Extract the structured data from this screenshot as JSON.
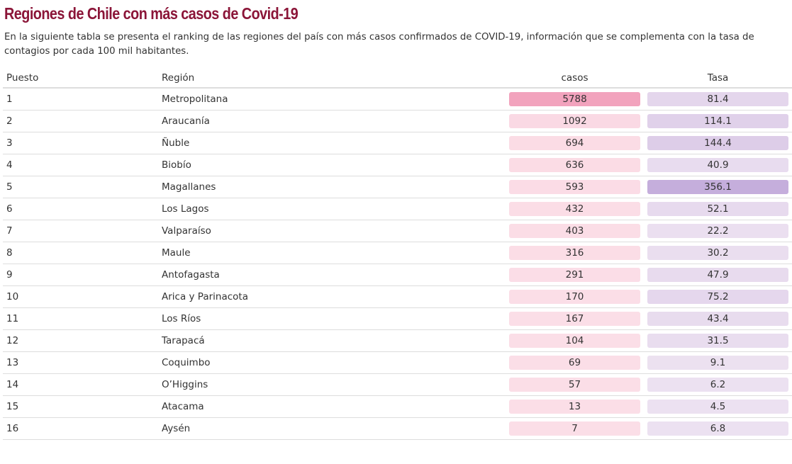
{
  "title": "Regiones de Chile con más casos de Covid-19",
  "description": "En la siguiente tabla se presenta el ranking de las regiones del país con más casos confirmados de COVID-19, información que se complementa con la tasa de contagios por cada 100 mil habitantes.",
  "headers": {
    "puesto": "Puesto",
    "region": "Región",
    "casos": "casos",
    "tasa": "Tasa"
  },
  "colors": {
    "title": "#8b1538",
    "casos_low": "#fbdee7",
    "casos_high": "#f2a3bd",
    "tasa_low": "#ede2f1",
    "tasa_high": "#c5aedc"
  },
  "rows": [
    {
      "puesto": "1",
      "region": "Metropolitana",
      "casos": "5788",
      "tasa": "81.4"
    },
    {
      "puesto": "2",
      "region": "Araucanía",
      "casos": "1092",
      "tasa": "114.1"
    },
    {
      "puesto": "3",
      "region": "Ñuble",
      "casos": "694",
      "tasa": "144.4"
    },
    {
      "puesto": "4",
      "region": "Biobío",
      "casos": "636",
      "tasa": "40.9"
    },
    {
      "puesto": "5",
      "region": "Magallanes",
      "casos": "593",
      "tasa": "356.1"
    },
    {
      "puesto": "6",
      "region": "Los Lagos",
      "casos": "432",
      "tasa": "52.1"
    },
    {
      "puesto": "7",
      "region": "Valparaíso",
      "casos": "403",
      "tasa": "22.2"
    },
    {
      "puesto": "8",
      "region": "Maule",
      "casos": "316",
      "tasa": "30.2"
    },
    {
      "puesto": "9",
      "region": "Antofagasta",
      "casos": "291",
      "tasa": "47.9"
    },
    {
      "puesto": "10",
      "region": "Arica y Parinacota",
      "casos": "170",
      "tasa": "75.2"
    },
    {
      "puesto": "11",
      "region": "Los Ríos",
      "casos": "167",
      "tasa": "43.4"
    },
    {
      "puesto": "12",
      "region": "Tarapacá",
      "casos": "104",
      "tasa": "31.5"
    },
    {
      "puesto": "13",
      "region": "Coquimbo",
      "casos": "69",
      "tasa": "9.1"
    },
    {
      "puesto": "14",
      "region": "O’Higgins",
      "casos": "57",
      "tasa": "6.2"
    },
    {
      "puesto": "15",
      "region": "Atacama",
      "casos": "13",
      "tasa": "4.5"
    },
    {
      "puesto": "16",
      "region": "Aysén",
      "casos": "7",
      "tasa": "6.8"
    }
  ]
}
